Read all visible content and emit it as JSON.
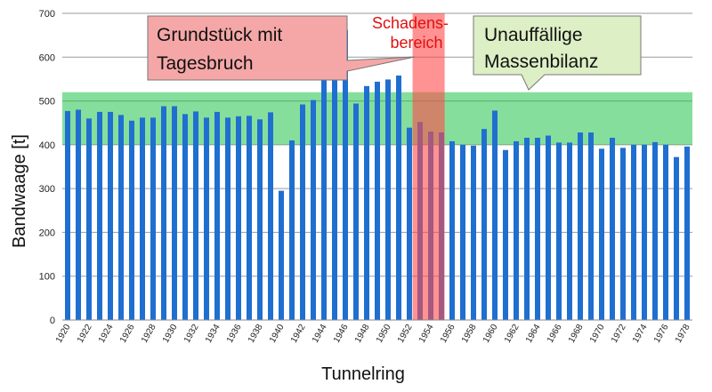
{
  "chart_data": {
    "type": "bar",
    "xlabel": "Tunnelring",
    "ylabel": "Bandwaage [t]",
    "ylim": [
      0,
      700
    ],
    "yticks": [
      0,
      100,
      200,
      300,
      400,
      500,
      600,
      700
    ],
    "grid": true,
    "bar_color": "#1f6fd1",
    "categories": [
      1920,
      1921,
      1922,
      1923,
      1924,
      1925,
      1926,
      1927,
      1928,
      1929,
      1930,
      1931,
      1932,
      1933,
      1934,
      1935,
      1936,
      1937,
      1938,
      1939,
      1940,
      1941,
      1942,
      1943,
      1944,
      1945,
      1946,
      1947,
      1948,
      1949,
      1950,
      1951,
      1952,
      1953,
      1954,
      1955,
      1956,
      1957,
      1958,
      1959,
      1960,
      1961,
      1962,
      1963,
      1964,
      1965,
      1966,
      1967,
      1968,
      1969,
      1970,
      1971,
      1972,
      1973,
      1974,
      1975,
      1976,
      1977,
      1978
    ],
    "xtick_labels": [
      "1920",
      "1922",
      "1924",
      "1926",
      "1928",
      "1930",
      "1932",
      "1934",
      "1936",
      "1938",
      "1940",
      "1942",
      "1944",
      "1946",
      "1948",
      "1950",
      "1952",
      "1954",
      "1956",
      "1958",
      "1960",
      "1962",
      "1964",
      "1966",
      "1968",
      "1970",
      "1972",
      "1974",
      "1976",
      "1978"
    ],
    "values": [
      477,
      480,
      460,
      475,
      475,
      468,
      455,
      462,
      462,
      488,
      488,
      470,
      476,
      462,
      475,
      462,
      465,
      466,
      458,
      474,
      295,
      410,
      492,
      502,
      565,
      600,
      662,
      494,
      534,
      544,
      549,
      558,
      439,
      452,
      430,
      428,
      408,
      400,
      398,
      436,
      478,
      388,
      408,
      416,
      416,
      421,
      405,
      405,
      428,
      428,
      391,
      416,
      393,
      400,
      400,
      406,
      400,
      372,
      396
    ],
    "annotations": {
      "green_band": {
        "from": 400,
        "to": 520,
        "color": "#22c24a"
      },
      "red_band": {
        "from_x": 1953,
        "to_x": 1955,
        "color": "#ff4a4a"
      },
      "callout_left": {
        "lines": [
          "Grundstück mit",
          "Tagesbruch"
        ],
        "color": "#f5a7a7",
        "points_to_x": 1955
      },
      "callout_right": {
        "lines": [
          "Unauffällige",
          "Massenbilanz"
        ],
        "color": "#ddefc5",
        "points_to_x": 1961
      },
      "red_label": [
        "Schadens-",
        "bereich"
      ]
    }
  }
}
